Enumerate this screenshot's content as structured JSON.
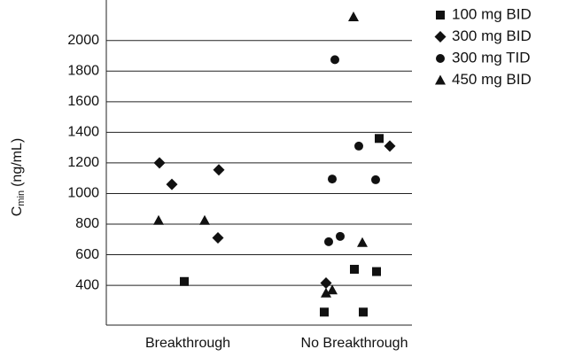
{
  "chart_data": {
    "type": "scatter",
    "ylabel": "C",
    "ylabel_sub": "min",
    "ylabel_unit": "(ng/mL)",
    "categories": [
      "Breakthrough",
      "No Breakthrough"
    ],
    "ylim": [
      140,
      2265
    ],
    "yticks": [
      400,
      600,
      800,
      1000,
      1200,
      1400,
      1600,
      1800,
      2000
    ],
    "grid": true,
    "legend": "top-right",
    "series": [
      {
        "name": "100 mg BID",
        "marker": "square",
        "color": "#111111",
        "x": [
          "Breakthrough",
          "No Breakthrough",
          "No Breakthrough",
          "No Breakthrough",
          "No Breakthrough",
          "No Breakthrough"
        ],
        "values": [
          425,
          1360,
          505,
          490,
          225,
          225
        ]
      },
      {
        "name": "300 mg BID",
        "marker": "diamond",
        "color": "#111111",
        "x": [
          "Breakthrough",
          "Breakthrough",
          "Breakthrough",
          "Breakthrough",
          "No Breakthrough",
          "No Breakthrough"
        ],
        "values": [
          1200,
          1060,
          1155,
          710,
          1310,
          415
        ]
      },
      {
        "name": "300 mg TID",
        "marker": "circle",
        "color": "#111111",
        "x": [
          "No Breakthrough",
          "No Breakthrough",
          "No Breakthrough",
          "No Breakthrough",
          "No Breakthrough",
          "No Breakthrough"
        ],
        "values": [
          1875,
          1310,
          1095,
          1090,
          720,
          685
        ]
      },
      {
        "name": "450 mg BID",
        "marker": "triangle",
        "color": "#111111",
        "x": [
          "Breakthrough",
          "Breakthrough",
          "No Breakthrough",
          "No Breakthrough",
          "No Breakthrough",
          "No Breakthrough"
        ],
        "values": [
          825,
          825,
          2155,
          680,
          370,
          350
        ]
      }
    ]
  }
}
